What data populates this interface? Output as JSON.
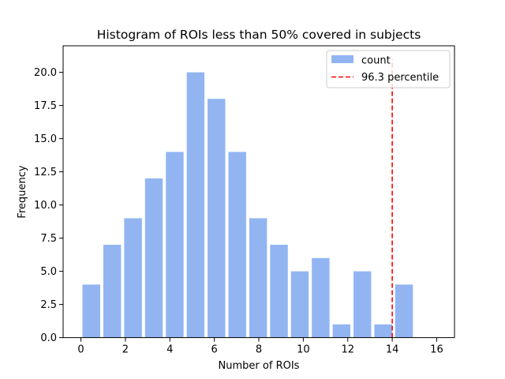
{
  "chart_data": {
    "type": "bar",
    "title": "Histogram of ROIs less than 50% covered in subjects",
    "xlabel": "Number of ROIs",
    "ylabel": "Frequency",
    "xlim": [
      -0.8,
      16.8
    ],
    "ylim": [
      0,
      22
    ],
    "x_ticks": [
      0,
      2,
      4,
      6,
      8,
      10,
      12,
      14,
      16
    ],
    "x_tick_labels": [
      "0",
      "2",
      "4",
      "6",
      "8",
      "10",
      "12",
      "14",
      "16"
    ],
    "y_ticks": [
      0,
      2.5,
      5,
      7.5,
      10,
      12.5,
      15,
      17.5,
      20
    ],
    "y_tick_labels": [
      "0.0",
      "2.5",
      "5.0",
      "7.5",
      "10.0",
      "12.5",
      "15.0",
      "17.5",
      "20.0"
    ],
    "bin_width": 0.9375,
    "bar_width_fraction": 0.85,
    "bins_start": [
      0,
      0.9375,
      1.875,
      2.8125,
      3.75,
      4.6875,
      5.625,
      6.5625,
      7.5,
      8.4375,
      9.375,
      10.3125,
      11.25,
      12.1875,
      13.125,
      14.0625
    ],
    "bins_end": [
      0.9375,
      1.875,
      2.8125,
      3.75,
      4.6875,
      5.625,
      6.5625,
      7.5,
      8.4375,
      9.375,
      10.3125,
      11.25,
      12.1875,
      13.125,
      14.0625,
      15
    ],
    "series": [
      {
        "name": "count",
        "color": "#6495ED",
        "opacity": 0.7,
        "values": [
          4,
          7,
          9,
          12,
          14,
          20,
          18,
          14,
          9,
          7,
          5,
          6,
          1,
          5,
          1,
          4
        ]
      }
    ],
    "reference_line": {
      "name": "96.3 percentile",
      "x": 14,
      "color": "#ff0000",
      "style": "dashed",
      "y_range": [
        0,
        21
      ]
    },
    "legend": {
      "placement": "top-right",
      "entries": [
        {
          "label": "count",
          "kind": "patch",
          "color": "#6495ED"
        },
        {
          "label": "96.3 percentile",
          "kind": "dashed-line",
          "color": "#ff0000"
        }
      ]
    },
    "grid": false
  }
}
